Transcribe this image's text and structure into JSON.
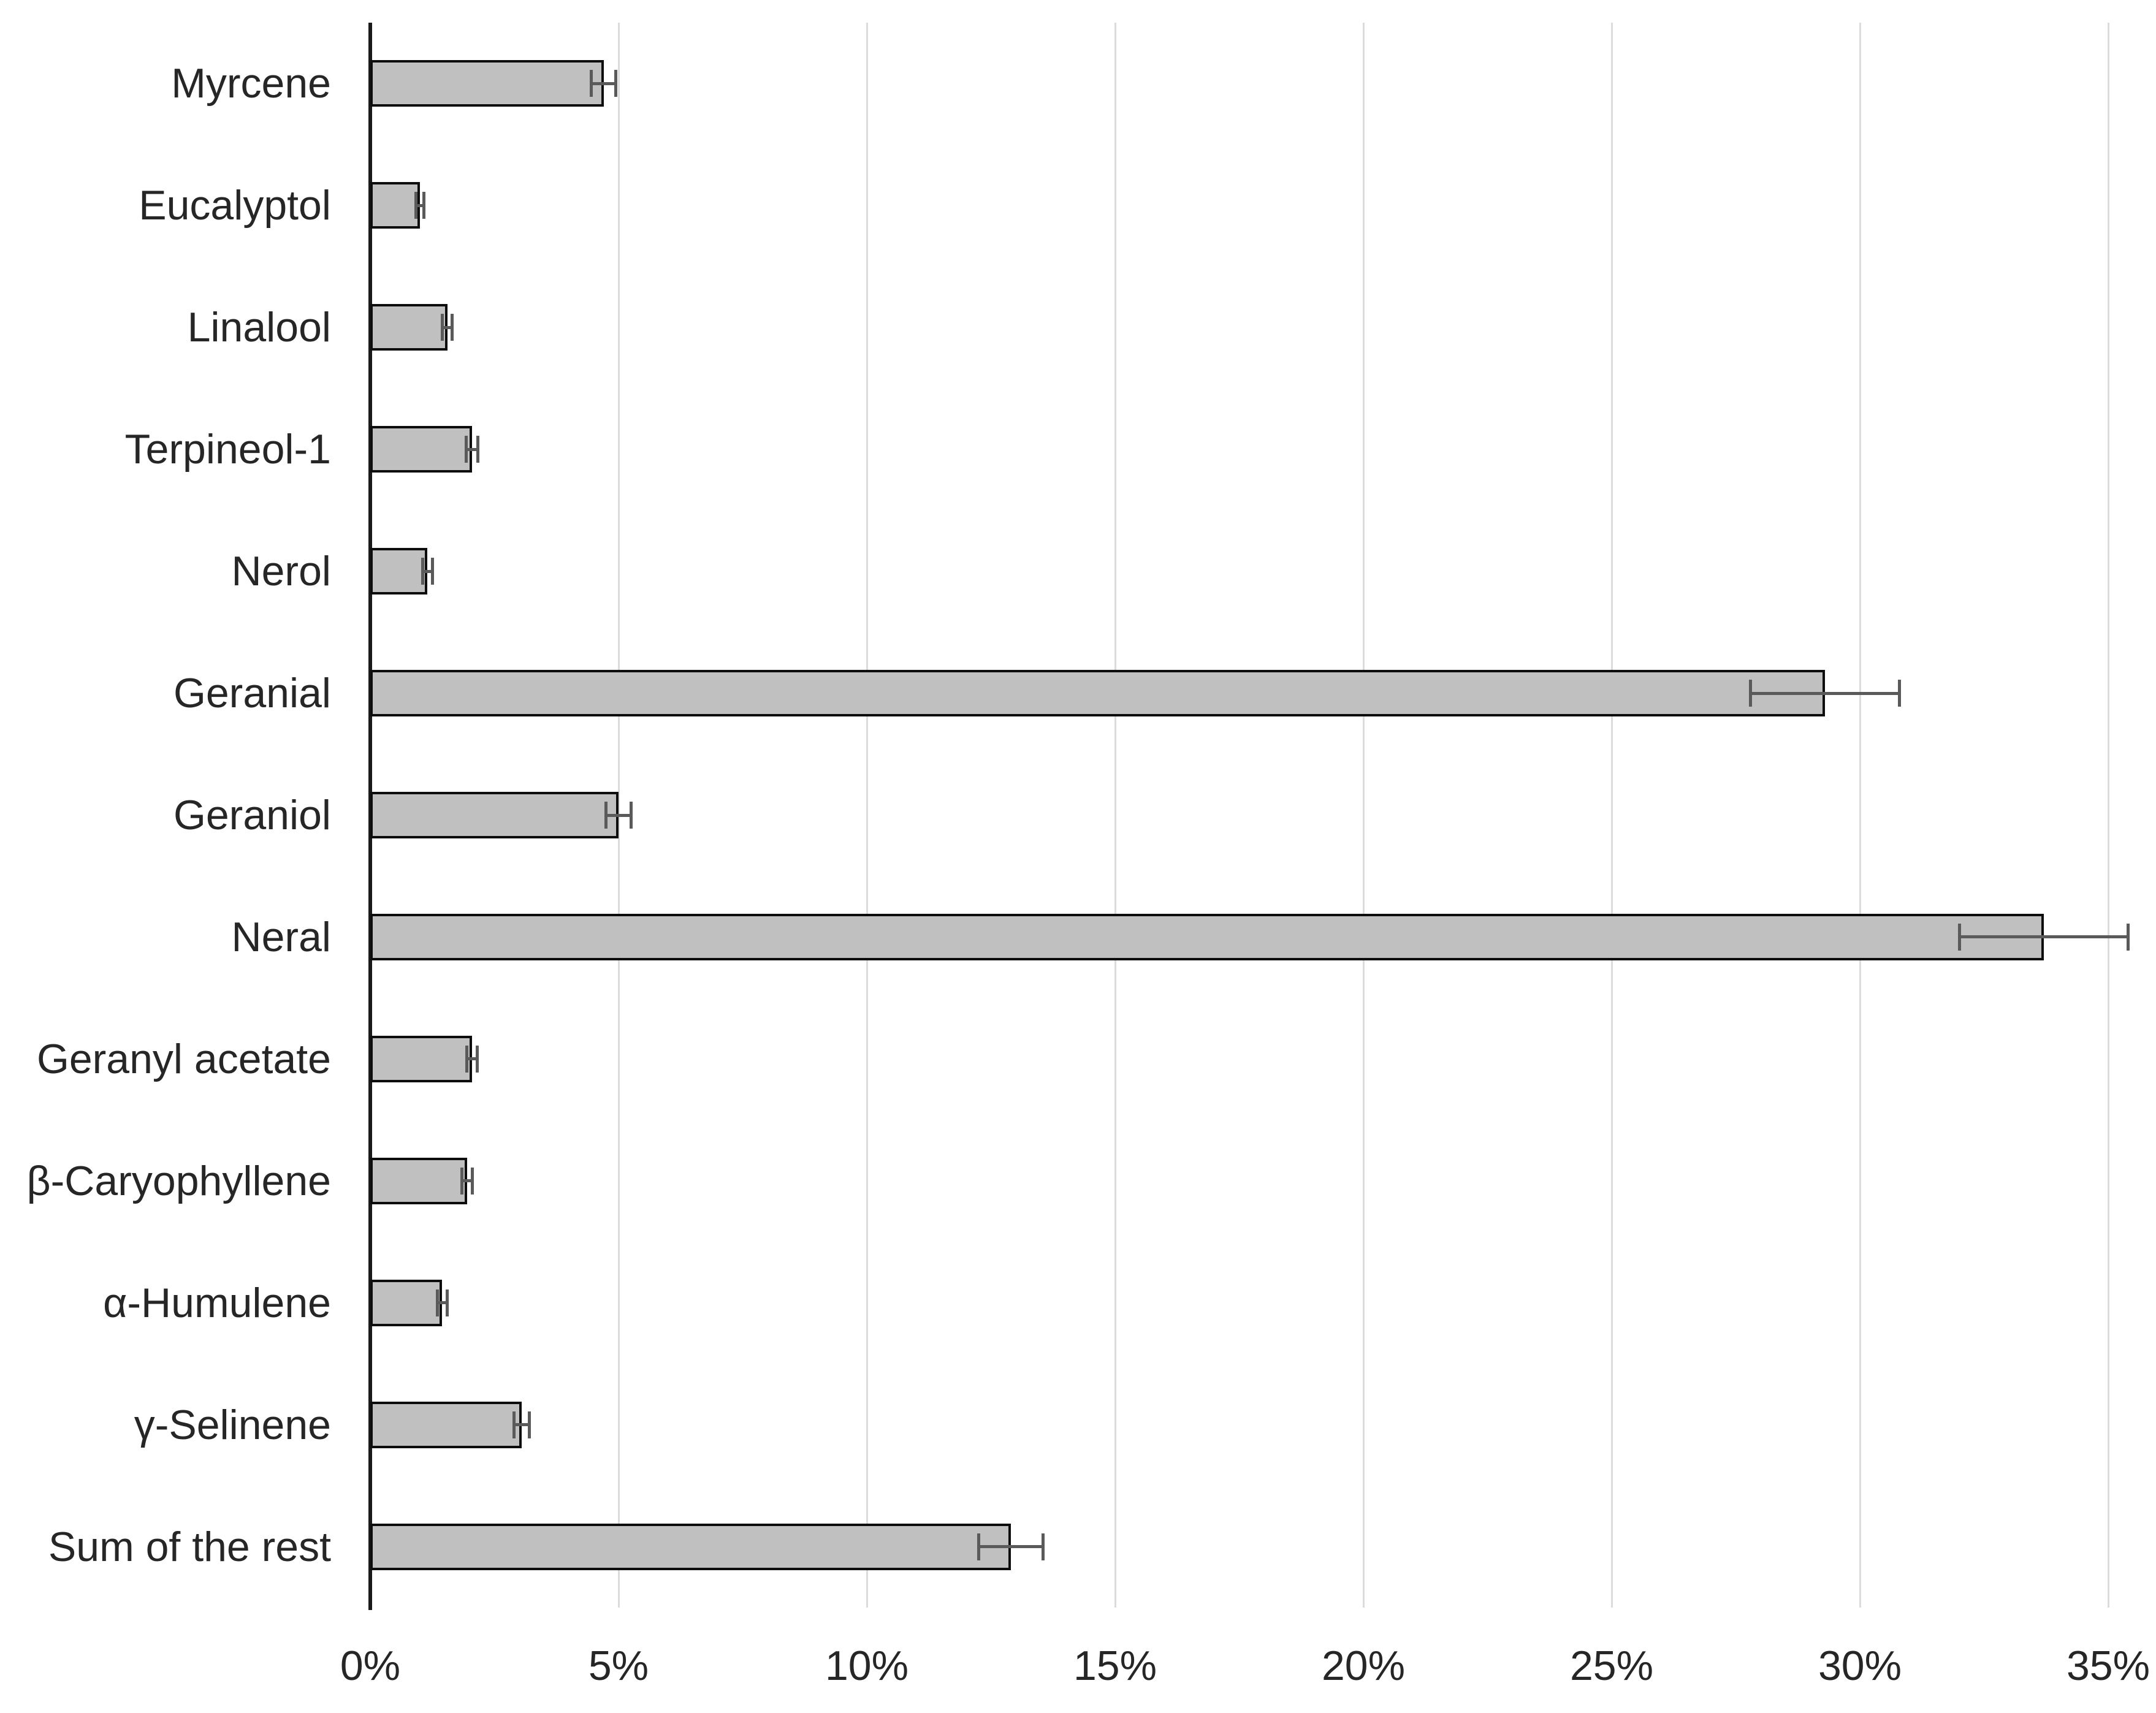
{
  "chart_data": {
    "type": "bar",
    "orientation": "horizontal",
    "title": "",
    "xlabel": "",
    "ylabel": "",
    "unit": "%",
    "categories": [
      "Myrcene",
      "Eucalyptol",
      "Linalool",
      "Terpineol-1",
      "Nerol",
      "Geranial",
      "Geraniol",
      "Neral",
      "Geranyl acetate",
      "β-Caryophyllene",
      "α-Humulene",
      "γ-Selinene",
      "Sum of the rest"
    ],
    "values": [
      4.7,
      1.0,
      1.55,
      2.05,
      1.15,
      29.3,
      5.0,
      33.7,
      2.05,
      1.95,
      1.45,
      3.05,
      12.9
    ],
    "error_bars": [
      0.25,
      0.08,
      0.1,
      0.12,
      0.1,
      1.5,
      0.25,
      1.7,
      0.1,
      0.1,
      0.1,
      0.15,
      0.65
    ],
    "x_ticks": [
      "0%",
      "5%",
      "10%",
      "15%",
      "20%",
      "25%",
      "30%",
      "35%"
    ],
    "x_tick_values": [
      0,
      5,
      10,
      15,
      20,
      25,
      30,
      35
    ],
    "xlim": [
      0,
      35
    ],
    "grid": "vertical-gridlines-on",
    "legend": "none",
    "colors": {
      "bar_fill": "#c0c0c0",
      "bar_border": "#0d0d0d",
      "error_bar": "#5a5a5a",
      "gridline": "#dcdcdc",
      "axis_line": "#1a1a1a",
      "text": "#262626",
      "background": "#ffffff"
    }
  }
}
